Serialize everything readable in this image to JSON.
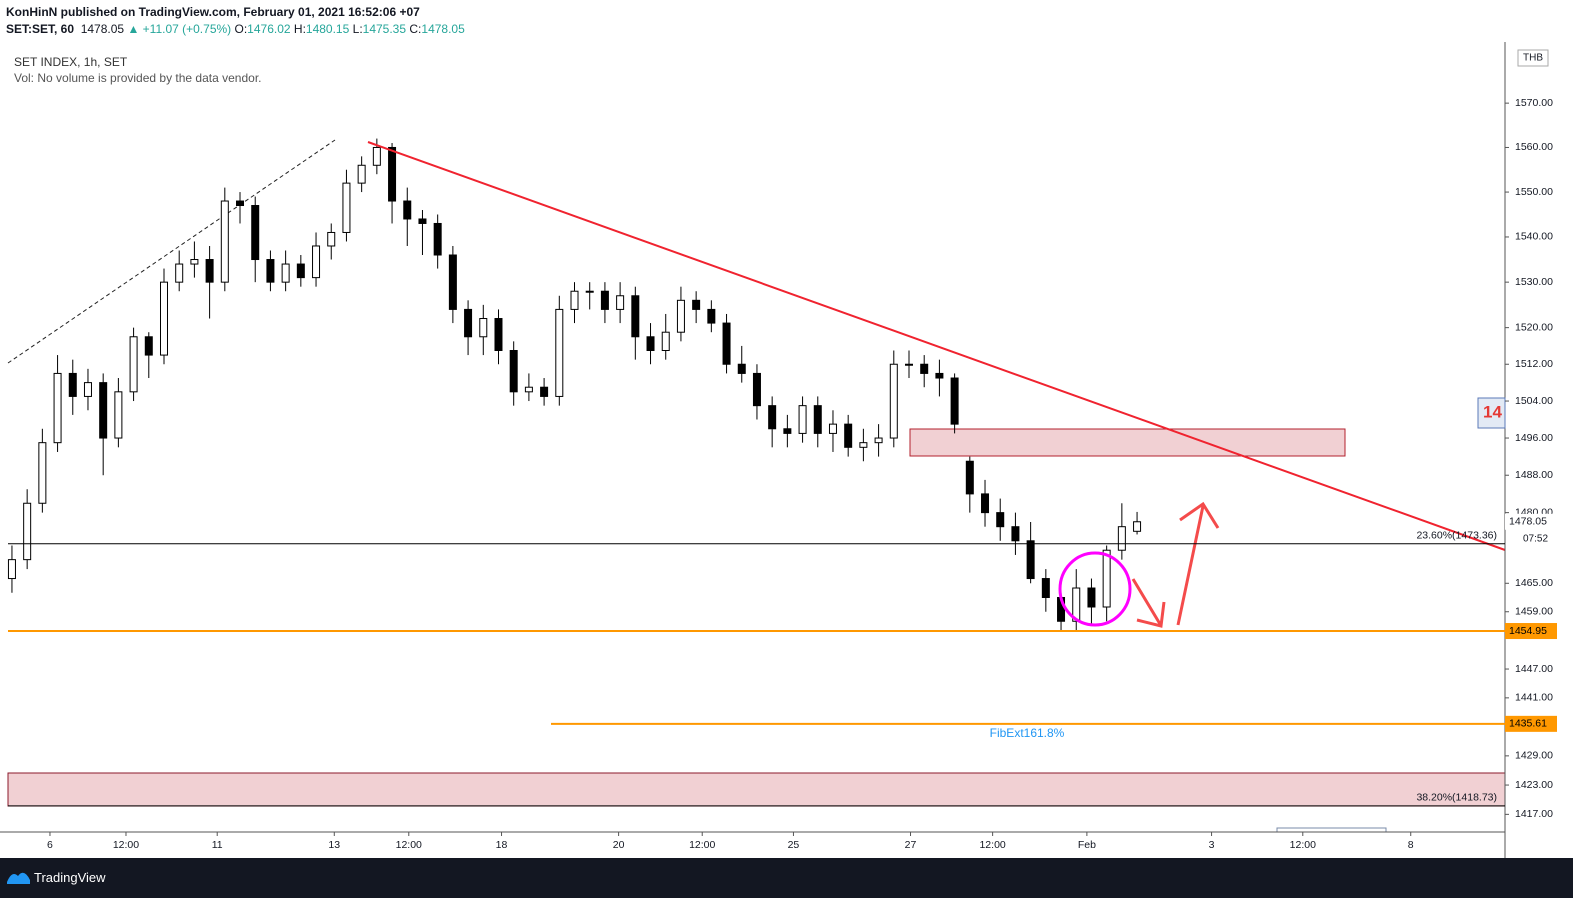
{
  "header": {
    "publisher": "KonHinN published on TradingView.com, February 01, 2021 16:52:06 +07",
    "symbol": "SET:SET, 60",
    "change": "▲ +11.07 (+0.75%)",
    "ohlc_labels": [
      "O:",
      "H:",
      "L:",
      "C:"
    ]
  },
  "legend": {
    "title": "SET INDEX, 1h, SET",
    "volume": "Vol: No volume is provided by the data vendor."
  },
  "chart_data": {
    "type": "candlestick",
    "open": [
      1466,
      1470,
      1482,
      1495,
      1510,
      1505,
      1508,
      1496,
      1506,
      1518,
      1514,
      1530,
      1534,
      1535,
      1530,
      1548,
      1547,
      1535,
      1530,
      1534,
      1531,
      1538,
      1541,
      1552,
      1556,
      1560,
      1548,
      1544,
      1543,
      1536,
      1524,
      1518,
      1522,
      1515,
      1506,
      1507,
      1505,
      1524,
      1528,
      1528,
      1524,
      1527,
      1518,
      1515,
      1519,
      1526,
      1524,
      1521,
      1512,
      1510,
      1503,
      1498,
      1497,
      1503,
      1497,
      1499,
      1494,
      1495,
      1496,
      1512,
      1512,
      1510,
      1509,
      1491,
      1484,
      1480,
      1477,
      1474,
      1466,
      1462,
      1457,
      1464,
      1460,
      1472,
      1476.02
    ],
    "high": [
      1473,
      1485,
      1498,
      1514,
      1513,
      1511,
      1510,
      1509,
      1520,
      1519,
      1533,
      1537,
      1539,
      1538,
      1551,
      1550,
      1549,
      1537,
      1537,
      1536,
      1541,
      1543,
      1555,
      1558,
      1562,
      1561,
      1551,
      1546,
      1545,
      1538,
      1526,
      1525,
      1524,
      1517,
      1510,
      1509,
      1527,
      1530,
      1530,
      1530,
      1530,
      1529,
      1521,
      1523,
      1529,
      1528,
      1526,
      1523,
      1516,
      1512,
      1505,
      1501,
      1505,
      1505,
      1502,
      1501,
      1498,
      1499,
      1515,
      1515,
      1514,
      1513,
      1510,
      1492,
      1487,
      1483,
      1480,
      1478,
      1468,
      1463,
      1468,
      1466,
      1473,
      1482,
      1480.15
    ],
    "low": [
      1463,
      1468,
      1480,
      1493,
      1501,
      1502,
      1488,
      1494,
      1504,
      1509,
      1512,
      1528,
      1531,
      1522,
      1528,
      1543,
      1530,
      1528,
      1528,
      1529,
      1529,
      1535,
      1539,
      1550,
      1554,
      1543,
      1538,
      1536,
      1533,
      1521,
      1514,
      1514,
      1512,
      1503,
      1504,
      1503,
      1503,
      1521,
      1524,
      1521,
      1521,
      1513,
      1512,
      1513,
      1517,
      1521,
      1519,
      1510,
      1508,
      1500,
      1494,
      1494,
      1495,
      1494,
      1493,
      1492,
      1491,
      1492,
      1494,
      1509,
      1507,
      1505,
      1497,
      1480,
      1477,
      1474,
      1471,
      1465,
      1459,
      1455,
      1455,
      1456,
      1457,
      1470,
      1475.35
    ],
    "close": [
      1470,
      1482,
      1495,
      1510,
      1505,
      1508,
      1496,
      1506,
      1518,
      1514,
      1530,
      1534,
      1535,
      1530,
      1548,
      1547,
      1535,
      1530,
      1534,
      1531,
      1538,
      1541,
      1552,
      1556,
      1560,
      1548,
      1544,
      1543,
      1536,
      1524,
      1518,
      1522,
      1515,
      1506,
      1507,
      1505,
      1524,
      1528,
      1528,
      1524,
      1527,
      1518,
      1515,
      1519,
      1526,
      1524,
      1521,
      1512,
      1510,
      1503,
      1498,
      1497,
      1503,
      1497,
      1499,
      1494,
      1495,
      1496,
      1512,
      1512,
      1510,
      1509,
      1499,
      1484,
      1480,
      1477,
      1474,
      1466,
      1462,
      1457,
      1464,
      1460,
      1472,
      1477,
      1478.05
    ],
    "up_color": "#ffffff",
    "down_color": "#000000",
    "ylim": [
      1413.4,
      1583.9
    ],
    "log_scale": true,
    "yticks": [
      {
        "value": 1570,
        "label": "1570.00"
      },
      {
        "value": 1560,
        "label": "1560.00"
      },
      {
        "value": 1550,
        "label": "1550.00"
      },
      {
        "value": 1540,
        "label": "1540.00"
      },
      {
        "value": 1530,
        "label": "1530.00"
      },
      {
        "value": 1520,
        "label": "1520.00"
      },
      {
        "value": 1512,
        "label": "1512.00"
      },
      {
        "value": 1504,
        "label": "1504.00"
      },
      {
        "value": 1496,
        "label": "1496.00"
      },
      {
        "value": 1488,
        "label": "1488.00"
      },
      {
        "value": 1480,
        "label": "1480.00"
      },
      {
        "value": 1465,
        "label": "1465.00"
      },
      {
        "value": 1459,
        "label": "1459.00"
      },
      {
        "value": 1447,
        "label": "1447.00"
      },
      {
        "value": 1441,
        "label": "1441.00"
      },
      {
        "value": 1429,
        "label": "1429.00"
      },
      {
        "value": 1423,
        "label": "1423.00"
      },
      {
        "value": 1417,
        "label": "1417.00"
      }
    ],
    "xlim": [
      -0.26,
      98.2
    ],
    "xticks": [
      {
        "value": 2.5,
        "label": "6"
      },
      {
        "value": 7.5,
        "label": "12:00"
      },
      {
        "value": 13.5,
        "label": "11"
      },
      {
        "value": 21.2,
        "label": "13"
      },
      {
        "value": 26.1,
        "label": "12:00"
      },
      {
        "value": 32.2,
        "label": "18"
      },
      {
        "value": 39.9,
        "label": "20"
      },
      {
        "value": 45.4,
        "label": "12:00"
      },
      {
        "value": 51.4,
        "label": "25"
      },
      {
        "value": 59.1,
        "label": "27"
      },
      {
        "value": 64.5,
        "label": "12:00"
      },
      {
        "value": 70.7,
        "label": "Feb"
      },
      {
        "value": 78.9,
        "label": "3"
      },
      {
        "value": 84.9,
        "label": "12:00"
      },
      {
        "value": 92.0,
        "label": "8"
      }
    ],
    "currency": "THB",
    "countdown": "07:52",
    "alert_label": "14",
    "fib_levels": [
      {
        "value": 1473.36,
        "label": "23.60%(1473.36)"
      },
      {
        "value": 1418.73,
        "label": "38.20%(1418.73)"
      }
    ],
    "levels": [
      1454.95,
      1435.61
    ],
    "level_color": "#ff9800",
    "fib_ext_label": "FibExt161.8%"
  },
  "footer": {
    "brand": "TradingView"
  }
}
